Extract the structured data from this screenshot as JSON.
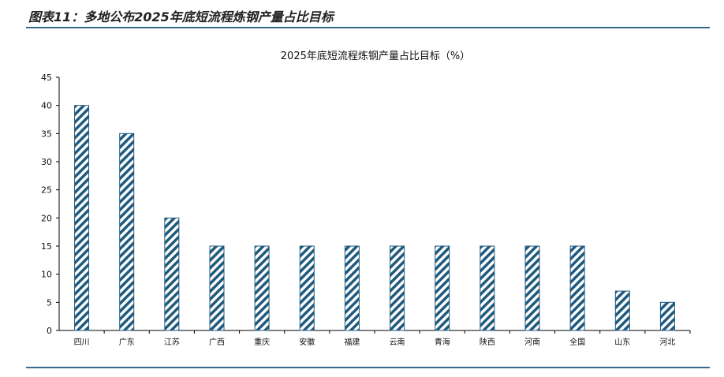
{
  "figure_title": "图表11：多地公布2025年底短流程炼钢产量占比目标",
  "chart_data": {
    "type": "bar",
    "title": "2025年底短流程炼钢产量占比目标（%）",
    "categories": [
      "四川",
      "广东",
      "江苏",
      "广西",
      "重庆",
      "安徽",
      "福建",
      "云南",
      "青海",
      "陕西",
      "河南",
      "全国",
      "山东",
      "河北"
    ],
    "values": [
      40,
      35,
      20,
      15,
      15,
      15,
      15,
      15,
      15,
      15,
      15,
      15,
      7,
      5
    ],
    "ylim": [
      0,
      45
    ],
    "yticks": [
      0,
      5,
      10,
      15,
      20,
      25,
      30,
      35,
      40,
      45
    ],
    "grid": false,
    "bar_pattern": "diagonal-hatch",
    "bar_color": "#1f5a7e"
  }
}
